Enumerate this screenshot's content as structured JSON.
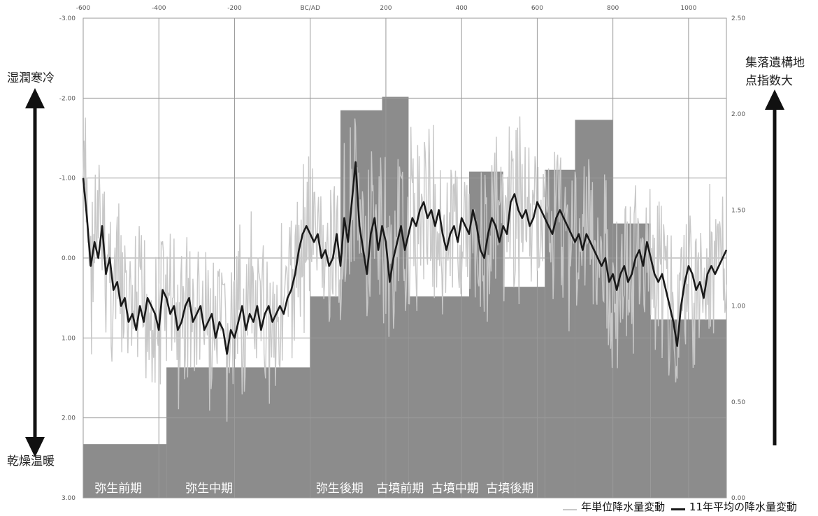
{
  "labels": {
    "left_top": "湿潤寒冷",
    "left_bottom": "乾燥温暖",
    "right_top_1": "集落遺構地",
    "right_top_2": "点指数大"
  },
  "legend": [
    {
      "label": "年単位降水量変動",
      "color": "#c8c8c8"
    },
    {
      "label": "11年平均の降水量変動",
      "color": "#1a1a1a"
    }
  ],
  "chart_data": {
    "type": "bar+line",
    "top_axis": {
      "range": [
        -600,
        1100
      ],
      "ticks": [
        "-600",
        "-400",
        "-200",
        "BC/AD",
        "200",
        "400",
        "600",
        "800",
        "1000"
      ],
      "tick_values": [
        -600,
        -400,
        -200,
        0,
        200,
        400,
        600,
        800,
        1000
      ]
    },
    "left_axis": {
      "range": [
        -3.0,
        3.0
      ],
      "inverted": true,
      "ticks": [
        "-3.00",
        "-2.00",
        "-1.00",
        "0.00",
        "1.00",
        "2.00",
        "3.00"
      ],
      "tick_values": [
        -3,
        -2,
        -1,
        0,
        1,
        2,
        3
      ]
    },
    "right_axis": {
      "range": [
        0.0,
        2.5
      ],
      "ticks": [
        "0.00",
        "0.50",
        "1.00",
        "1.50",
        "2.00",
        "2.50"
      ],
      "tick_values": [
        0,
        0.5,
        1,
        1.5,
        2,
        2.5
      ]
    },
    "grid": true,
    "periods": [
      {
        "name": "弥生前期",
        "start": -600,
        "end": -380,
        "index": 0.28
      },
      {
        "name": "弥生中期",
        "start": -380,
        "end": 0,
        "index": 0.68
      },
      {
        "name": "弥生後期",
        "start": 0,
        "end": 80,
        "index": 1.05
      },
      {
        "name": "弥生後期",
        "start": 80,
        "end": 190,
        "index": 2.02
      },
      {
        "name": "古墳前期",
        "start": 190,
        "end": 260,
        "index": 2.09
      },
      {
        "name": "古墳中期",
        "start": 260,
        "end": 420,
        "index": 1.05
      },
      {
        "name": "古墳中期",
        "start": 420,
        "end": 510,
        "index": 1.7
      },
      {
        "name": "古墳後期",
        "start": 510,
        "end": 620,
        "index": 1.1
      },
      {
        "name": "古墳後期",
        "start": 620,
        "end": 700,
        "index": 1.71
      },
      {
        "name": "古墳後期",
        "start": 700,
        "end": 800,
        "index": 1.97
      },
      {
        "name": "古墳後期",
        "start": 800,
        "end": 900,
        "index": 1.43
      },
      {
        "name": "古墳後期",
        "start": 900,
        "end": 1100,
        "index": 0.93
      }
    ],
    "period_labels": [
      {
        "text": "弥生前期",
        "x": -570
      },
      {
        "text": "弥生中期",
        "x": -330
      },
      {
        "text": "弥生後期",
        "x": 15
      },
      {
        "text": "古墳前期",
        "x": 175
      },
      {
        "text": "古墳中期",
        "x": 320
      },
      {
        "text": "古墳後期",
        "x": 465
      }
    ],
    "smoothed_series": {
      "name": "11年平均の降水量変動",
      "x": [
        -600,
        -590,
        -580,
        -570,
        -560,
        -550,
        -540,
        -530,
        -520,
        -510,
        -500,
        -490,
        -480,
        -470,
        -460,
        -450,
        -440,
        -430,
        -420,
        -410,
        -400,
        -390,
        -380,
        -370,
        -360,
        -350,
        -340,
        -330,
        -320,
        -310,
        -300,
        -290,
        -280,
        -270,
        -260,
        -250,
        -240,
        -230,
        -220,
        -210,
        -200,
        -190,
        -180,
        -170,
        -160,
        -150,
        -140,
        -130,
        -120,
        -110,
        -100,
        -90,
        -80,
        -70,
        -60,
        -50,
        -40,
        -30,
        -20,
        -10,
        0,
        10,
        20,
        30,
        40,
        50,
        60,
        70,
        80,
        90,
        100,
        110,
        120,
        130,
        140,
        150,
        160,
        170,
        180,
        190,
        200,
        210,
        220,
        230,
        240,
        250,
        260,
        270,
        280,
        290,
        300,
        310,
        320,
        330,
        340,
        350,
        360,
        370,
        380,
        390,
        400,
        410,
        420,
        430,
        440,
        450,
        460,
        470,
        480,
        490,
        500,
        510,
        520,
        530,
        540,
        550,
        560,
        570,
        580,
        590,
        600,
        610,
        620,
        630,
        640,
        650,
        660,
        670,
        680,
        690,
        700,
        710,
        720,
        730,
        740,
        750,
        760,
        770,
        780,
        790,
        800,
        810,
        820,
        830,
        840,
        850,
        860,
        870,
        880,
        890,
        900,
        910,
        920,
        930,
        940,
        950,
        960,
        970,
        980,
        990,
        1000,
        1010,
        1020,
        1030,
        1040,
        1050,
        1060,
        1070,
        1080,
        1090,
        1100
      ],
      "y": [
        -1.0,
        -0.5,
        0.1,
        -0.2,
        0.0,
        -0.4,
        0.2,
        0.0,
        0.4,
        0.3,
        0.6,
        0.5,
        0.8,
        0.7,
        0.9,
        0.6,
        0.8,
        0.5,
        0.6,
        0.7,
        0.9,
        0.4,
        0.5,
        0.7,
        0.6,
        0.9,
        0.8,
        0.6,
        0.5,
        0.8,
        0.7,
        0.6,
        0.9,
        0.8,
        0.7,
        1.0,
        0.8,
        0.9,
        1.2,
        0.9,
        1.0,
        0.8,
        0.6,
        0.9,
        0.7,
        0.8,
        0.6,
        0.9,
        0.7,
        0.6,
        0.8,
        0.7,
        0.6,
        0.7,
        0.5,
        0.4,
        0.2,
        -0.1,
        -0.3,
        -0.4,
        -0.3,
        -0.2,
        -0.3,
        0.0,
        -0.1,
        0.1,
        0.0,
        -0.3,
        0.1,
        -0.5,
        -0.2,
        -0.7,
        -1.2,
        -0.4,
        -0.1,
        0.2,
        -0.3,
        -0.5,
        -0.1,
        -0.4,
        -0.2,
        0.3,
        0.0,
        -0.2,
        -0.4,
        -0.1,
        -0.3,
        -0.5,
        -0.4,
        -0.6,
        -0.7,
        -0.5,
        -0.6,
        -0.4,
        -0.6,
        -0.3,
        -0.1,
        -0.3,
        -0.4,
        -0.2,
        -0.5,
        -0.4,
        -0.3,
        -0.6,
        -0.4,
        -0.1,
        0.0,
        -0.3,
        -0.5,
        -0.4,
        -0.2,
        -0.4,
        -0.3,
        -0.7,
        -0.8,
        -0.6,
        -0.5,
        -0.6,
        -0.4,
        -0.5,
        -0.7,
        -0.6,
        -0.5,
        -0.4,
        -0.3,
        -0.5,
        -0.6,
        -0.5,
        -0.4,
        -0.3,
        -0.2,
        -0.3,
        -0.1,
        -0.3,
        -0.2,
        -0.1,
        0.0,
        0.1,
        0.0,
        0.3,
        0.2,
        0.4,
        0.2,
        0.1,
        0.3,
        0.2,
        0.0,
        -0.1,
        0.1,
        -0.2,
        0.0,
        0.2,
        0.3,
        0.2,
        0.4,
        0.6,
        0.8,
        1.1,
        0.6,
        0.3,
        0.1,
        0.2,
        0.4,
        0.3,
        0.5,
        0.2,
        0.1,
        0.2,
        0.1,
        0.0,
        -0.1
      ]
    },
    "annual_series": {
      "name": "年単位降水量変動",
      "amplitude": 0.9
    }
  }
}
